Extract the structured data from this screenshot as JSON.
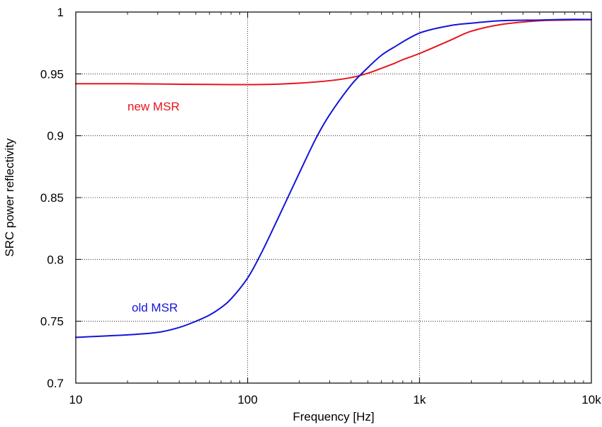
{
  "chart_data": {
    "type": "line",
    "xlabel": "Frequency [Hz]",
    "ylabel": "SRC power reflectivity",
    "x_scale": "log",
    "xlim": [
      10,
      10000
    ],
    "ylim": [
      0.7,
      1.0
    ],
    "grid": true,
    "x_ticks": [
      {
        "value": 10,
        "label": "10"
      },
      {
        "value": 100,
        "label": "100"
      },
      {
        "value": 1000,
        "label": "1k"
      },
      {
        "value": 10000,
        "label": "10k"
      }
    ],
    "y_ticks": [
      {
        "value": 0.7,
        "label": "0.7"
      },
      {
        "value": 0.75,
        "label": "0.75"
      },
      {
        "value": 0.8,
        "label": "0.8"
      },
      {
        "value": 0.85,
        "label": "0.85"
      },
      {
        "value": 0.9,
        "label": "0.9"
      },
      {
        "value": 0.95,
        "label": "0.95"
      },
      {
        "value": 1.0,
        "label": "1"
      }
    ],
    "series": [
      {
        "name": "new MSR",
        "color": "#e8141c",
        "x": [
          10,
          20,
          30,
          50,
          70,
          100,
          150,
          200,
          300,
          400,
          500,
          600,
          700,
          800,
          1000,
          1500,
          2000,
          3000,
          5000,
          7000,
          10000
        ],
        "y": [
          0.942,
          0.942,
          0.9418,
          0.9415,
          0.9414,
          0.9413,
          0.9417,
          0.9425,
          0.9445,
          0.947,
          0.9505,
          0.9545,
          0.958,
          0.9615,
          0.9665,
          0.977,
          0.9845,
          0.99,
          0.993,
          0.9935,
          0.9938
        ]
      },
      {
        "name": "old MSR",
        "color": "#1414dc",
        "x": [
          10,
          20,
          30,
          40,
          50,
          60,
          70,
          80,
          100,
          120,
          150,
          200,
          250,
          300,
          400,
          500,
          600,
          700,
          1000,
          1500,
          2000,
          3000,
          5000,
          7000,
          10000
        ],
        "y": [
          0.737,
          0.739,
          0.741,
          0.745,
          0.75,
          0.755,
          0.761,
          0.768,
          0.785,
          0.805,
          0.833,
          0.87,
          0.898,
          0.917,
          0.941,
          0.955,
          0.965,
          0.971,
          0.983,
          0.989,
          0.991,
          0.993,
          0.9935,
          0.994,
          0.994
        ]
      }
    ],
    "annotations": [
      {
        "text": "new MSR",
        "series": 0
      },
      {
        "text": "old MSR",
        "series": 1
      }
    ]
  }
}
